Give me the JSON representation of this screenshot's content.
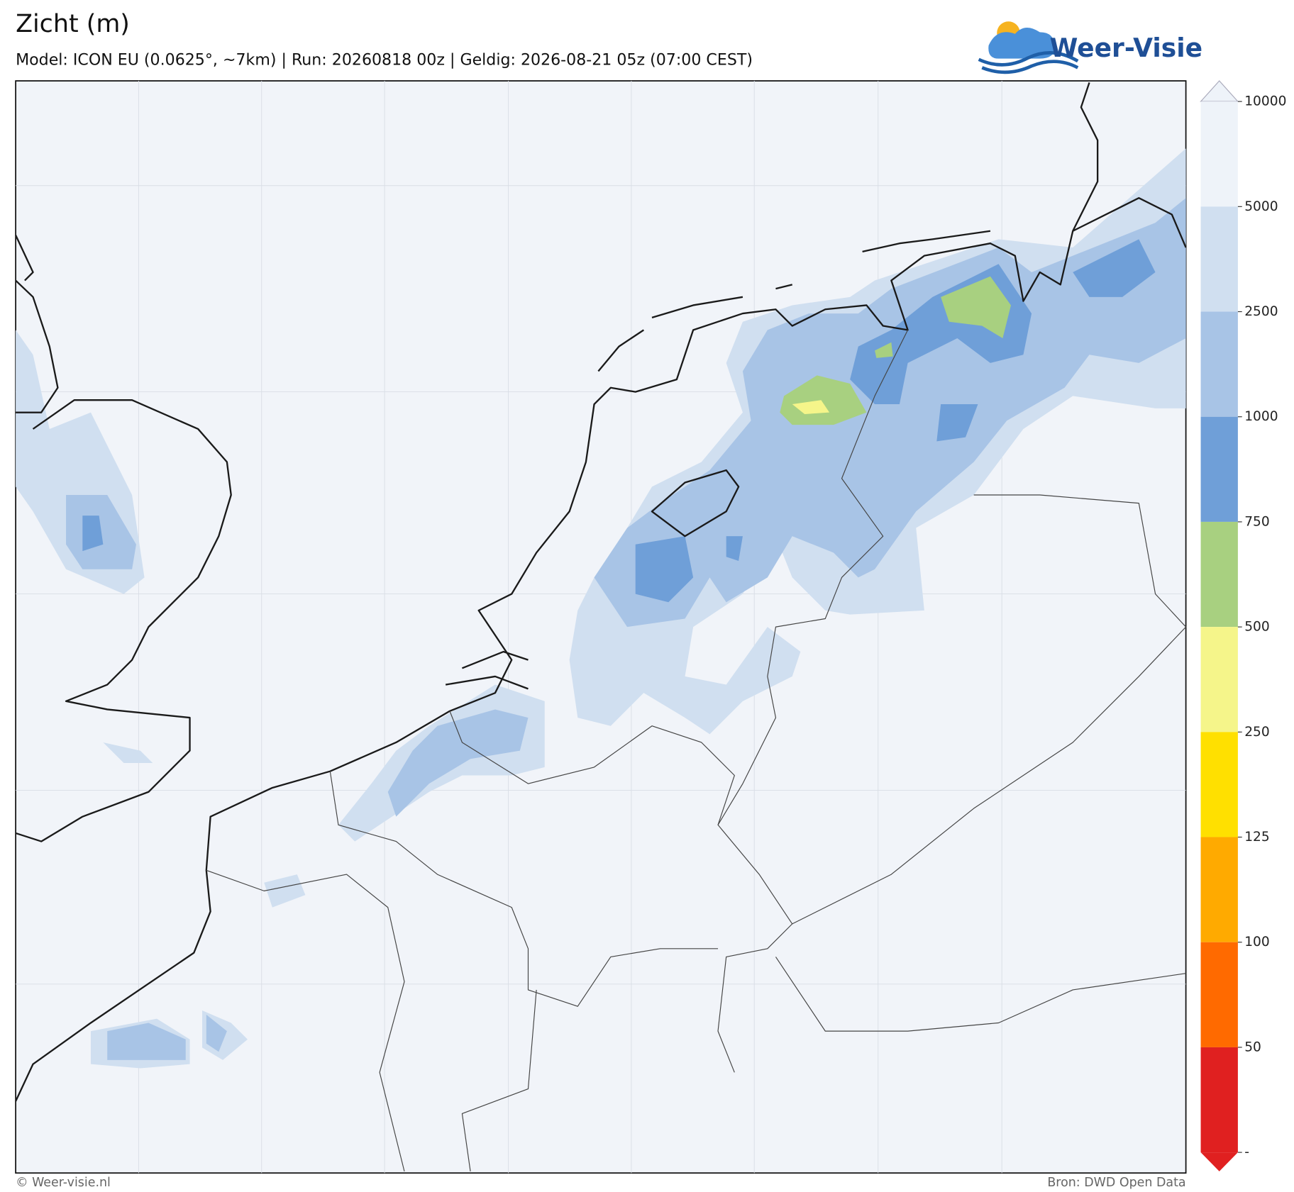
{
  "header": {
    "title": "Zicht (m)",
    "subtitle": "Model: ICON EU (0.0625°, ~7km)  |  Run: 20260818 00z  |  Geldig: 2026-08-21 05z (07:00 CEST)",
    "logo": "Weer-Visie"
  },
  "colorbar": {
    "ticks": [
      10000,
      5000,
      2500,
      1000,
      750,
      500,
      250,
      125,
      100,
      50
    ],
    "bottom_label": "-",
    "colors": [
      "#eef3f9",
      "#d0dff0",
      "#a8c4e6",
      "#6f9fd8",
      "#a8d080",
      "#f5f58a",
      "#ffe000",
      "#ffaa00",
      "#ff6a00",
      "#e02020"
    ]
  },
  "footer": {
    "left": "© Weer-visie.nl",
    "right": "Bron: DWD Open Data"
  }
}
